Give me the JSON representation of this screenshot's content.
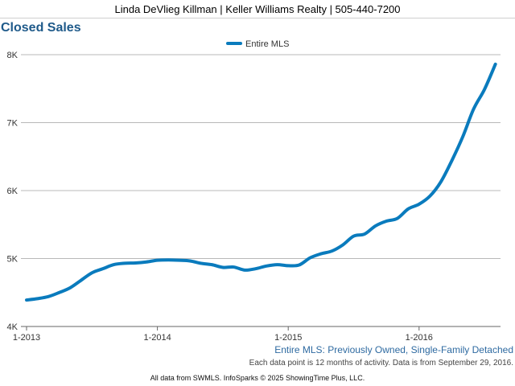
{
  "header": {
    "agent_line": "Linda DeVlieg Killman | Keller Williams Realty | 505-440-7200"
  },
  "colors": {
    "series": "#0a7bbd",
    "title": "#1f5a8a",
    "grid": "#b8b8b8"
  },
  "chart_data": {
    "type": "line",
    "title": "Closed Sales",
    "xlabel": "",
    "ylabel": "",
    "ylim": [
      4000,
      8000
    ],
    "y_ticks": [
      {
        "value": 4000,
        "label": "4K"
      },
      {
        "value": 5000,
        "label": "5K"
      },
      {
        "value": 6000,
        "label": "6K"
      },
      {
        "value": 7000,
        "label": "7K"
      },
      {
        "value": 8000,
        "label": "8K"
      }
    ],
    "x_ticks": [
      {
        "index": 0,
        "label": "1-2013"
      },
      {
        "index": 12,
        "label": "1-2014"
      },
      {
        "index": 24,
        "label": "1-2015"
      },
      {
        "index": 36,
        "label": "1-2016"
      }
    ],
    "grid": true,
    "legend_position": "top-center",
    "series": [
      {
        "name": "Entire MLS",
        "x": [
          "1-2013",
          "2-2013",
          "3-2013",
          "4-2013",
          "5-2013",
          "6-2013",
          "7-2013",
          "8-2013",
          "9-2013",
          "10-2013",
          "11-2013",
          "12-2013",
          "1-2014",
          "2-2014",
          "3-2014",
          "4-2014",
          "5-2014",
          "6-2014",
          "7-2014",
          "8-2014",
          "9-2014",
          "10-2014",
          "11-2014",
          "12-2014",
          "1-2015",
          "2-2015",
          "3-2015",
          "4-2015",
          "5-2015",
          "6-2015",
          "7-2015",
          "8-2015",
          "9-2015",
          "10-2015",
          "11-2015",
          "12-2015",
          "1-2016",
          "2-2016",
          "3-2016",
          "4-2016",
          "5-2016",
          "6-2016",
          "7-2016",
          "8-2016"
        ],
        "values": [
          4390,
          4410,
          4440,
          4500,
          4570,
          4680,
          4790,
          4850,
          4910,
          4930,
          4935,
          4950,
          4975,
          4980,
          4975,
          4965,
          4930,
          4910,
          4870,
          4875,
          4830,
          4850,
          4890,
          4910,
          4895,
          4905,
          5010,
          5070,
          5110,
          5200,
          5330,
          5360,
          5480,
          5550,
          5590,
          5730,
          5800,
          5920,
          6130,
          6440,
          6790,
          7200,
          7490,
          7860
        ]
      }
    ]
  },
  "footer": {
    "series_note": "Entire MLS: Previously Owned, Single-Family Detached",
    "data_note": "Each data point is 12 months of activity. Data is from September 29, 2016.",
    "credit": "All data from SWMLS. InfoSparks © 2025 ShowingTime Plus, LLC."
  }
}
